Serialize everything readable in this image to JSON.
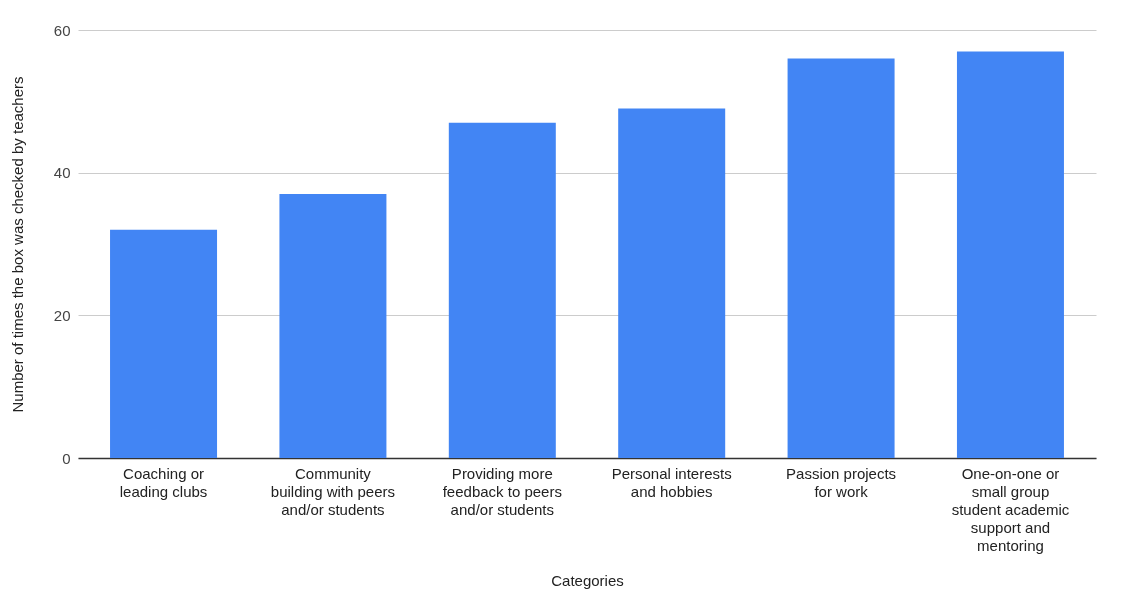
{
  "chart_data": {
    "type": "bar",
    "xlabel": "Categories",
    "ylabel": "Number of times the box was checked by teachers",
    "categories": [
      "Coaching or\nleading clubs",
      "Community\nbuilding with peers\nand/or students",
      "Providing more\nfeedback to peers\nand/or students",
      "Personal interests\nand hobbies",
      "Passion projects\nfor work",
      "One-on-one or\nsmall group\nstudent academic\nsupport and\nmentoring"
    ],
    "values": [
      32,
      37,
      47,
      49,
      56,
      57
    ],
    "color": "#4285f4",
    "ylim": [
      0,
      60
    ],
    "yticks": [
      0,
      20,
      40,
      60
    ],
    "grid": "y"
  }
}
